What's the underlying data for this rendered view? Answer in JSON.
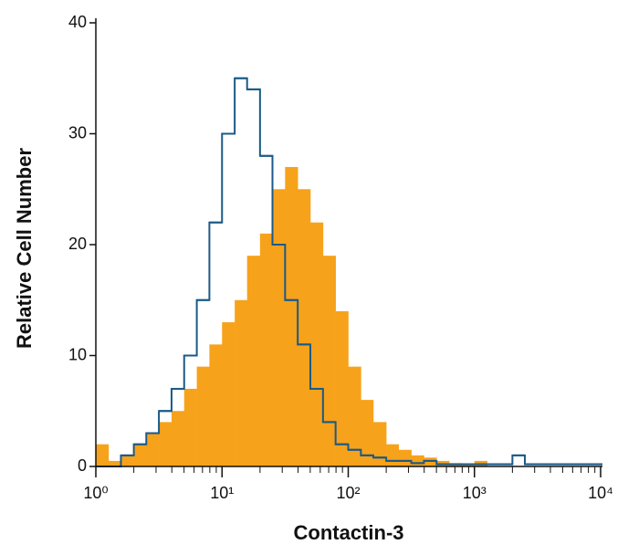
{
  "chart_data": {
    "type": "histogram",
    "xlabel": "Contactin-3",
    "ylabel": "Relative Cell Number",
    "xscale": "log",
    "xlim": [
      1,
      10000
    ],
    "xticks": [
      {
        "value": 1,
        "label": "10⁰"
      },
      {
        "value": 10,
        "label": "10¹"
      },
      {
        "value": 100,
        "label": "10²"
      },
      {
        "value": 1000,
        "label": "10³"
      },
      {
        "value": 10000,
        "label": "10⁴"
      }
    ],
    "ylim": [
      0,
      40
    ],
    "yticks": [
      0,
      10,
      20,
      30,
      40
    ],
    "x": [
      1,
      1.26,
      1.58,
      2,
      2.51,
      3.16,
      3.98,
      5.01,
      6.31,
      7.94,
      10,
      12.6,
      15.8,
      20,
      25.1,
      31.6,
      39.8,
      50.1,
      63.1,
      79.4,
      100,
      126,
      158,
      200,
      251,
      316,
      398,
      501,
      631,
      794,
      1000,
      1260,
      1580,
      2000,
      2510,
      3160,
      3980,
      5010,
      6310,
      7940,
      10000
    ],
    "series": [
      {
        "color": "#f7a21b",
        "fill": true,
        "values": [
          2,
          0.5,
          1,
          2,
          3,
          4,
          5,
          7,
          9,
          11,
          13,
          15,
          19,
          21,
          25,
          27,
          25,
          22,
          19,
          14,
          9,
          6,
          4,
          2,
          1.5,
          1,
          0.8,
          0.5,
          0.3,
          0.2,
          0.5,
          0,
          0,
          0,
          0,
          0,
          0,
          0,
          0,
          0,
          0
        ]
      },
      {
        "color": "#1b5a87",
        "fill": false,
        "values": [
          0,
          0,
          1,
          2,
          3,
          5,
          7,
          10,
          15,
          22,
          30,
          35,
          34,
          28,
          20,
          15,
          11,
          7,
          4,
          2,
          1.5,
          1,
          0.8,
          0.5,
          0.5,
          0.3,
          0.5,
          0.2,
          0.2,
          0.2,
          0.2,
          0.2,
          0.2,
          1,
          0.2,
          0.2,
          0.2,
          0.2,
          0.2,
          0.2,
          0.2
        ]
      }
    ]
  }
}
